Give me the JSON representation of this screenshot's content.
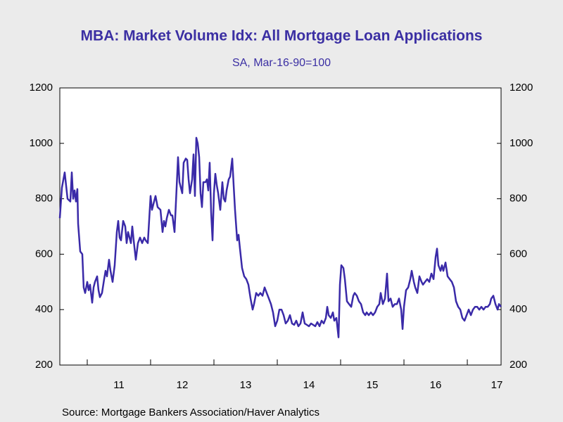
{
  "chart_data": {
    "type": "line",
    "title": "MBA: Market Volume Idx: All Mortgage Loan Applications",
    "subtitle": "SA, Mar-16-90=100",
    "source": "Source:  Mortgage Bankers Association/Haver Analytics",
    "xlim": [
      2010.567,
      2017.533
    ],
    "xticks": [
      {
        "value": 2011,
        "label": "11"
      },
      {
        "value": 2012,
        "label": "12"
      },
      {
        "value": 2013,
        "label": "13"
      },
      {
        "value": 2014,
        "label": "14"
      },
      {
        "value": 2015,
        "label": "15"
      },
      {
        "value": 2016,
        "label": "16"
      },
      {
        "value": 2017,
        "label": "17"
      }
    ],
    "ylim": [
      200,
      1200
    ],
    "yticks": [
      200,
      400,
      600,
      800,
      1000,
      1200
    ],
    "y2lim": [
      200,
      1200
    ],
    "y2ticks": [
      200,
      400,
      600,
      800,
      1000,
      1200
    ],
    "series": [
      {
        "name": "All Mortgage Loan Applications",
        "color": "#3a2aa8",
        "x": [
          2010.567,
          2010.6,
          2010.644,
          2010.689,
          2010.733,
          2010.756,
          2010.778,
          2010.8,
          2010.822,
          2010.844,
          2010.856,
          2010.889,
          2010.922,
          2010.944,
          2010.967,
          2011,
          2011.022,
          2011.044,
          2011.078,
          2011.1,
          2011.122,
          2011.156,
          2011.178,
          2011.2,
          2011.233,
          2011.267,
          2011.289,
          2011.311,
          2011.344,
          2011.367,
          2011.4,
          2011.433,
          2011.467,
          2011.489,
          2011.511,
          2011.533,
          2011.567,
          2011.6,
          2011.622,
          2011.644,
          2011.667,
          2011.689,
          2011.711,
          2011.733,
          2011.767,
          2011.8,
          2011.833,
          2011.867,
          2011.9,
          2011.922,
          2011.956,
          2012,
          2012.022,
          2012.044,
          2012.078,
          2012.111,
          2012.156,
          2012.189,
          2012.211,
          2012.233,
          2012.256,
          2012.289,
          2012.322,
          2012.344,
          2012.378,
          2012.411,
          2012.433,
          2012.456,
          2012.478,
          2012.5,
          2012.522,
          2012.556,
          2012.578,
          2012.6,
          2012.622,
          2012.656,
          2012.678,
          2012.7,
          2012.722,
          2012.744,
          2012.767,
          2012.789,
          2012.811,
          2012.833,
          2012.867,
          2012.889,
          2012.911,
          2012.933,
          2012.956,
          2012.978,
          2013,
          2013.022,
          2013.044,
          2013.067,
          2013.1,
          2013.133,
          2013.156,
          2013.178,
          2013.2,
          2013.233,
          2013.256,
          2013.289,
          2013.311,
          2013.333,
          2013.367,
          2013.389,
          2013.411,
          2013.444,
          2013.478,
          2013.511,
          2013.544,
          2013.578,
          2013.611,
          2013.633,
          2013.667,
          2013.7,
          2013.733,
          2013.767,
          2013.8,
          2013.833,
          2013.867,
          2013.9,
          2013.933,
          2013.967,
          2014,
          2014.033,
          2014.067,
          2014.1,
          2014.133,
          2014.167,
          2014.2,
          2014.233,
          2014.267,
          2014.3,
          2014.333,
          2014.367,
          2014.4,
          2014.433,
          2014.467,
          2014.5,
          2014.533,
          2014.567,
          2014.6,
          2014.633,
          2014.667,
          2014.7,
          2014.733,
          2014.767,
          2014.789,
          2014.811,
          2014.844,
          2014.878,
          2014.9,
          2014.933,
          2014.967,
          2014.989,
          2015.011,
          2015.044,
          2015.067,
          2015.1,
          2015.133,
          2015.167,
          2015.2,
          2015.222,
          2015.256,
          2015.289,
          2015.322,
          2015.356,
          2015.389,
          2015.411,
          2015.444,
          2015.478,
          2015.511,
          2015.544,
          2015.578,
          2015.611,
          2015.633,
          2015.667,
          2015.7,
          2015.733,
          2015.756,
          2015.789,
          2015.822,
          2015.856,
          2015.889,
          2015.922,
          2015.956,
          2015.978,
          2016,
          2016.033,
          2016.067,
          2016.1,
          2016.122,
          2016.156,
          2016.178,
          2016.211,
          2016.244,
          2016.278,
          2016.3,
          2016.333,
          2016.367,
          2016.4,
          2016.433,
          2016.467,
          2016.5,
          2016.522,
          2016.544,
          2016.578,
          2016.6,
          2016.622,
          2016.656,
          2016.689,
          2016.722,
          2016.756,
          2016.789,
          2016.822,
          2016.856,
          2016.889,
          2016.922,
          2016.956,
          2016.989,
          2017.022,
          2017.056,
          2017.089,
          2017.122,
          2017.156,
          2017.189,
          2017.222,
          2017.256,
          2017.289,
          2017.322,
          2017.356,
          2017.378,
          2017.411,
          2017.444,
          2017.478,
          2017.5,
          2017.533
        ],
        "values": [
          730,
          840,
          895,
          800,
          790,
          895,
          800,
          830,
          790,
          835,
          710,
          610,
          600,
          480,
          460,
          500,
          470,
          490,
          425,
          480,
          500,
          520,
          470,
          445,
          460,
          510,
          540,
          520,
          580,
          540,
          500,
          560,
          680,
          720,
          660,
          650,
          720,
          700,
          640,
          680,
          660,
          640,
          700,
          650,
          580,
          640,
          660,
          640,
          660,
          650,
          640,
          810,
          760,
          780,
          810,
          770,
          760,
          680,
          720,
          700,
          730,
          760,
          740,
          740,
          680,
          840,
          950,
          860,
          840,
          820,
          930,
          945,
          940,
          870,
          820,
          870,
          960,
          810,
          1020,
          1000,
          950,
          820,
          770,
          860,
          860,
          870,
          830,
          930,
          750,
          650,
          820,
          890,
          850,
          820,
          760,
          860,
          800,
          790,
          830,
          870,
          880,
          945,
          850,
          760,
          650,
          670,
          620,
          550,
          520,
          510,
          490,
          440,
          400,
          420,
          460,
          450,
          460,
          450,
          480,
          460,
          440,
          420,
          390,
          340,
          360,
          400,
          400,
          380,
          350,
          360,
          380,
          350,
          345,
          360,
          340,
          350,
          390,
          350,
          345,
          340,
          350,
          345,
          340,
          355,
          340,
          360,
          350,
          370,
          410,
          380,
          370,
          390,
          360,
          370,
          300,
          490,
          560,
          550,
          510,
          430,
          420,
          410,
          450,
          460,
          450,
          430,
          420,
          390,
          380,
          390,
          380,
          390,
          380,
          390,
          410,
          420,
          460,
          420,
          440,
          530,
          430,
          440,
          410,
          420,
          420,
          440,
          400,
          330,
          410,
          470,
          480,
          510,
          540,
          500,
          480,
          460,
          520,
          500,
          490,
          500,
          510,
          500,
          530,
          510,
          590,
          620,
          560,
          540,
          560,
          540,
          570,
          520,
          510,
          500,
          480,
          430,
          410,
          400,
          370,
          360,
          380,
          400,
          380,
          400,
          410,
          410,
          400,
          410,
          400,
          410,
          410,
          420,
          440,
          450,
          420,
          400,
          420,
          410
        ]
      }
    ]
  }
}
